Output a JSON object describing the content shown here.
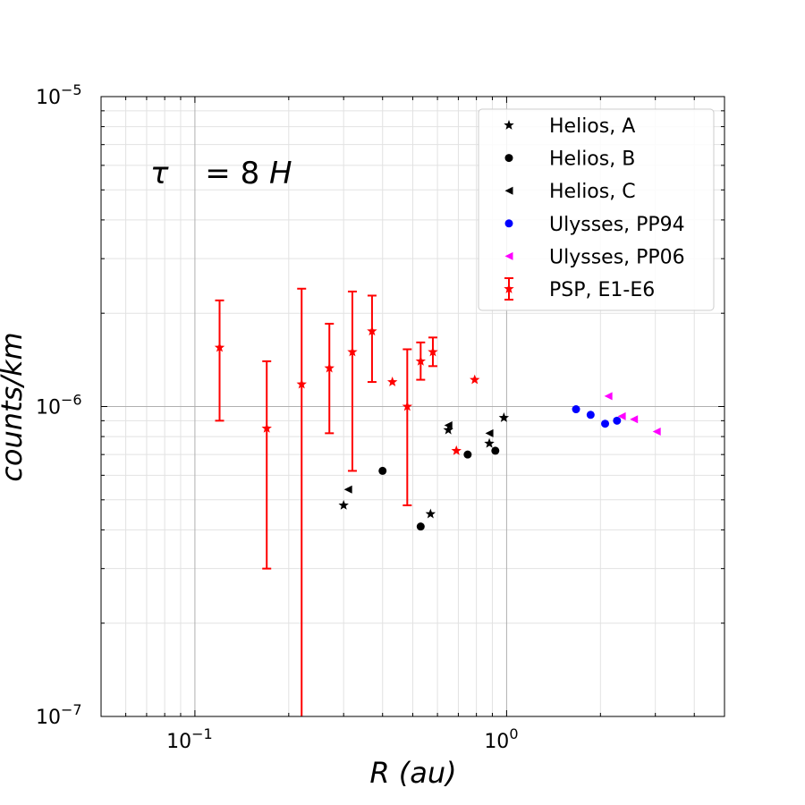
{
  "chart_data": {
    "type": "scatter",
    "x_scale": "log",
    "y_scale": "log",
    "xlim": [
      0.05,
      5
    ],
    "ylim": [
      1e-07,
      1e-05
    ],
    "xlabel": "R (au)",
    "ylabel": "counts/km",
    "x_ticks": [
      {
        "value": 0.1,
        "base": "10",
        "exp": "−1"
      },
      {
        "value": 1,
        "base": "10",
        "exp": "0"
      }
    ],
    "y_ticks": [
      {
        "value": 1e-07,
        "base": "10",
        "exp": "−7"
      },
      {
        "value": 1e-06,
        "base": "10",
        "exp": "−6"
      },
      {
        "value": 1e-05,
        "base": "10",
        "exp": "−5"
      }
    ],
    "grid": true,
    "legend_position": "top-right",
    "annotation": {
      "tau": "τ",
      "rest": "= 8 ",
      "unit": "H"
    },
    "series": [
      {
        "name": "Helios, A",
        "marker": "star",
        "color": "#000000",
        "x": [
          0.3,
          0.57,
          0.65,
          0.88,
          0.98
        ],
        "y": [
          4.8e-07,
          4.5e-07,
          8.4e-07,
          7.6e-07,
          9.2e-07
        ]
      },
      {
        "name": "Helios, B",
        "marker": "circle",
        "color": "#000000",
        "x": [
          0.4,
          0.53,
          0.75,
          0.92
        ],
        "y": [
          6.2e-07,
          4.1e-07,
          7e-07,
          7.2e-07
        ]
      },
      {
        "name": "Helios, C",
        "marker": "triangle-left",
        "color": "#000000",
        "x": [
          0.31,
          0.65,
          0.88
        ],
        "y": [
          5.4e-07,
          8.7e-07,
          8.2e-07
        ]
      },
      {
        "name": "Ulysses, PP94",
        "marker": "circle",
        "color": "#0000ff",
        "x": [
          1.67,
          1.86,
          2.07,
          2.26
        ],
        "y": [
          9.8e-07,
          9.4e-07,
          8.8e-07,
          9e-07
        ]
      },
      {
        "name": "Ulysses, PP06",
        "marker": "triangle-left",
        "color": "#ff00ff",
        "x": [
          2.12,
          2.34,
          2.56,
          3.03
        ],
        "y": [
          1.08e-06,
          9.3e-07,
          9.1e-07,
          8.3e-07
        ]
      },
      {
        "name": "PSP, E1-E6",
        "marker": "star",
        "color": "#ff0000",
        "errorbars": true,
        "x": [
          0.12,
          0.17,
          0.22,
          0.27,
          0.32,
          0.37,
          0.43,
          0.48,
          0.53,
          0.58,
          0.69,
          0.79
        ],
        "y": [
          1.55e-06,
          8.5e-07,
          1.18e-06,
          1.33e-06,
          1.5e-06,
          1.75e-06,
          1.2e-06,
          1e-06,
          1.4e-06,
          1.5e-06,
          7.2e-07,
          1.22e-06
        ],
        "err_low": [
          9e-07,
          3e-07,
          9e-08,
          8.2e-07,
          6.2e-07,
          1.2e-06,
          null,
          4.8e-07,
          1.22e-06,
          1.35e-06,
          null,
          null
        ],
        "err_high": [
          2.2e-06,
          1.4e-06,
          2.4e-06,
          1.85e-06,
          2.35e-06,
          2.28e-06,
          null,
          1.53e-06,
          1.61e-06,
          1.67e-06,
          null,
          null
        ]
      }
    ]
  }
}
